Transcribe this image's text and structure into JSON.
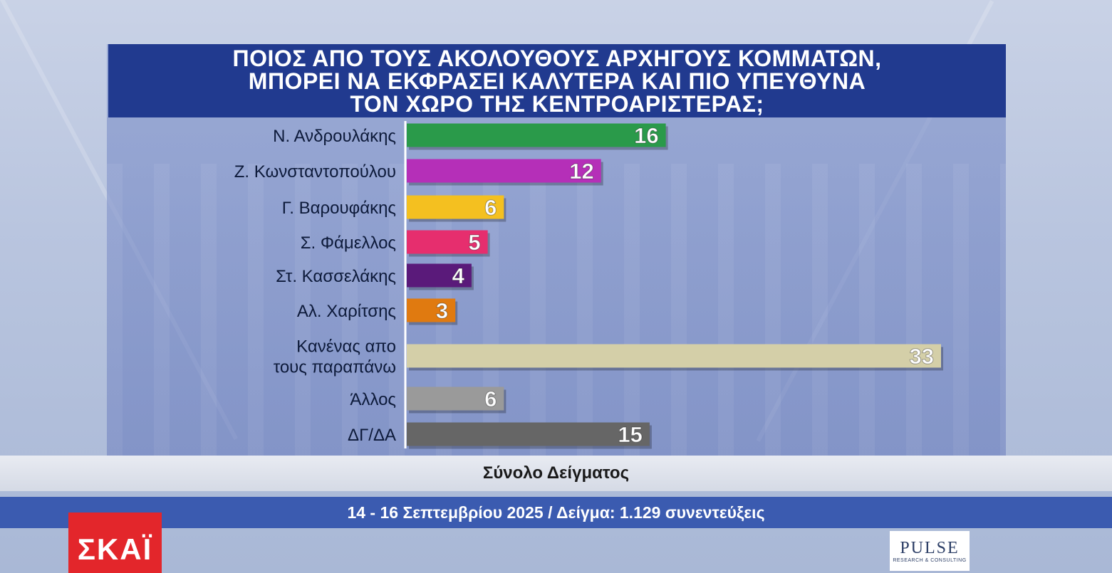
{
  "header": {
    "title_lines": [
      "ΠΟΙΟΣ ΑΠΟ ΤΟΥΣ ΑΚΟΛΟΥΘΟΥΣ ΑΡΧΗΓΟΥΣ ΚΟΜΜΑΤΩΝ,",
      "ΜΠΟΡΕΙ ΝΑ ΕΚΦΡΑΣΕΙ ΚΑΛΥΤΕΡΑ ΚΑΙ ΠΙΟ ΥΠΕΥΘΥΝΑ",
      "ΤΟΝ ΧΩΡΟ ΤΗΣ ΚΕΝΤΡΟΑΡΙΣΤΕΡΑΣ;"
    ]
  },
  "chart_data": {
    "type": "bar",
    "orientation": "horizontal",
    "title": "ΠΟΙΟΣ ΑΠΟ ΤΟΥΣ ΑΚΟΛΟΥΘΟΥΣ ΑΡΧΗΓΟΥΣ ΚΟΜΜΑΤΩΝ, ΜΠΟΡΕΙ ΝΑ ΕΚΦΡΑΣΕΙ ΚΑΛΥΤΕΡΑ ΚΑΙ ΠΙΟ ΥΠΕΥΘΥΝΑ ΤΟΝ ΧΩΡΟ ΤΗΣ ΚΕΝΤΡΟΑΡΙΣΤΕΡΑΣ;",
    "categories": [
      "Ν. Ανδρουλάκης",
      "Ζ. Κωνσταντοπούλου",
      "Γ. Βαρουφάκης",
      "Σ. Φάμελλος",
      "Στ. Κασσελάκης",
      "Αλ. Χαρίτσης",
      "Κανένας απο τους παραπάνω",
      "Άλλος",
      "ΔΓ/ΔΑ"
    ],
    "category_label_lines": [
      [
        "Ν. Ανδρουλάκης"
      ],
      [
        "Ζ. Κωνσταντοπούλου"
      ],
      [
        "Γ. Βαρουφάκης"
      ],
      [
        "Σ. Φάμελλος"
      ],
      [
        "Στ. Κασσελάκης"
      ],
      [
        "Αλ. Χαρίτσης"
      ],
      [
        "Κανένας απο",
        "τους παραπάνω"
      ],
      [
        "Άλλος"
      ],
      [
        "ΔΓ/ΔΑ"
      ]
    ],
    "values": [
      16,
      12,
      6,
      5,
      4,
      3,
      33,
      6,
      15
    ],
    "colors": [
      "#2a9a4a",
      "#b52fb8",
      "#f4c020",
      "#e62e6e",
      "#5a1a7a",
      "#e07a10",
      "#d4cfa8",
      "#9a9a9a",
      "#666666"
    ],
    "value_label_colors": [
      "#ffffff",
      "#ffffff",
      "#ffffff",
      "#ffffff",
      "#ffffff",
      "#ffffff",
      "#ffffff",
      "#ffffff",
      "#ffffff"
    ],
    "xlim": [
      0,
      33
    ],
    "grid": false,
    "legend": "none",
    "xlabel": "",
    "ylabel": ""
  },
  "footer": {
    "sample_label": "Σύνολο Δείγματος",
    "date_line": "14 - 16 Σεπτεμβρίου 2025 / Δείγμα: 1.129 συνεντεύξεις"
  },
  "logos": {
    "channel": "ΣΚΑΪ",
    "pollster": "PULSE",
    "pollster_sub": "RESEARCH & CONSULTING"
  }
}
